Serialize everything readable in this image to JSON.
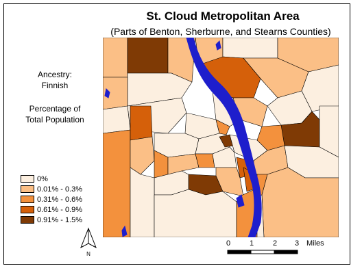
{
  "map": {
    "title": "St. Cloud Metropolitan Area",
    "subtitle": "(Parts of Benton, Sherburne, and Stearns Counties)",
    "variable": {
      "line1": "Ancestry:",
      "line2": "Finnish"
    },
    "measure": {
      "line1": "Percentage of",
      "line2": "Total Population"
    },
    "legend": [
      {
        "label": "0%",
        "color": "#fcefe0"
      },
      {
        "label": "0.01% - 0.3%",
        "color": "#fbbf86"
      },
      {
        "label": "0.31% - 0.6%",
        "color": "#f3913d"
      },
      {
        "label": "0.61% - 0.9%",
        "color": "#d5600a"
      },
      {
        "label": "0.91% - 1.5%",
        "color": "#7f3a05"
      }
    ],
    "water_color": "#1e1ecc",
    "north_label": "N",
    "scale": {
      "ticks": [
        "0",
        "1",
        "2",
        "3"
      ],
      "unit": "Miles"
    }
  }
}
